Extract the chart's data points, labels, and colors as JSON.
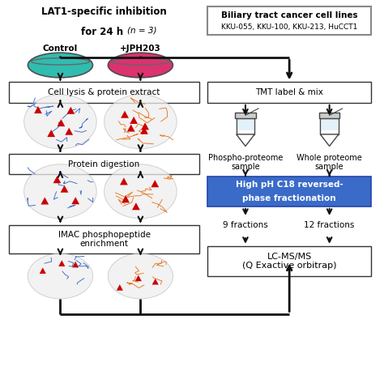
{
  "bg_color": "#ffffff",
  "lat1_line1": "LAT1-specific inhibition",
  "lat1_line2": "for 24 h ",
  "lat1_n": "(n = 3)",
  "biliary_title": "Biliary tract cancer cell lines",
  "biliary_subtitle": "KKU-055, KKU-100, KKU-213, HuCCT1",
  "control_label": "Control",
  "jph_label": "+JPH203",
  "cell_lysis_label": "Cell lysis & protein extract",
  "protein_dig_label": "Protein digestion",
  "imac_label": "IMAC phosphopeptide\nenrichment",
  "tmt_label": "TMT label & mix",
  "phospho_label": "Phospho-proteome\nsample",
  "whole_label": "Whole proteome\nsample",
  "hpc18_line1": "High pH C18 reversed-",
  "hpc18_line2": "phase fractionation",
  "fractions9_label": "9 fractions",
  "fractions12_label": "12 fractions",
  "lcms_label": "LC-MS/MS\n(Q Exactive orbitrap)",
  "color_control_dish": "#1ab5a8",
  "color_jph_dish": "#d81b60",
  "color_control_protein": "#3a6bc8",
  "color_jph_protein": "#e87820",
  "color_hpc18_bg": "#3a6bc8",
  "color_box_border": "#333333",
  "color_arrow": "#111111",
  "color_biliary_border": "#888888",
  "color_red": "#cc0000"
}
